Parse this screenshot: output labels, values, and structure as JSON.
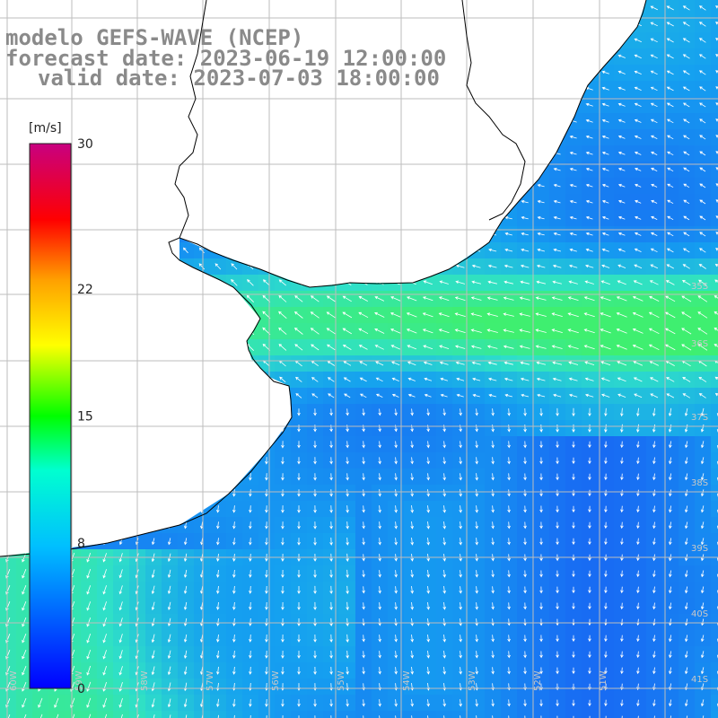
{
  "map": {
    "title": "modelo GEFS-WAVE (NCEP)",
    "forecast_date": "forecast date: 2023-06-19 12:00:00",
    "valid_date": "valid date: 2023-07-03 18:00:00",
    "colorbar": {
      "unit": "[m/s]",
      "ticks": [
        "30",
        "22",
        "15",
        "8",
        "0"
      ],
      "tick_values": [
        30,
        22,
        15,
        8,
        0
      ],
      "min": 0,
      "max": 30,
      "colors": [
        "#0000ff",
        "#00bfff",
        "#00ffd0",
        "#00ff00",
        "#ffff00",
        "#ffa000",
        "#ff0000",
        "#c80080"
      ]
    },
    "lat_labels": [
      "35S",
      "36S",
      "37S",
      "38S",
      "39S",
      "40S",
      "41S"
    ],
    "lon_labels": [
      "60W",
      "59W",
      "58W",
      "57W",
      "56W",
      "55W",
      "54W",
      "53W",
      "52W",
      "51W"
    ],
    "field_colors": {
      "ocean_low": "#1a55f5",
      "ocean_mid": "#15a0f0",
      "ocean_high": "#2fe0c8",
      "band": "#3fef70",
      "land": "#ffffff",
      "coast": "#000000",
      "grid": "#bdbdbd",
      "arrow": "#ffffff"
    }
  }
}
